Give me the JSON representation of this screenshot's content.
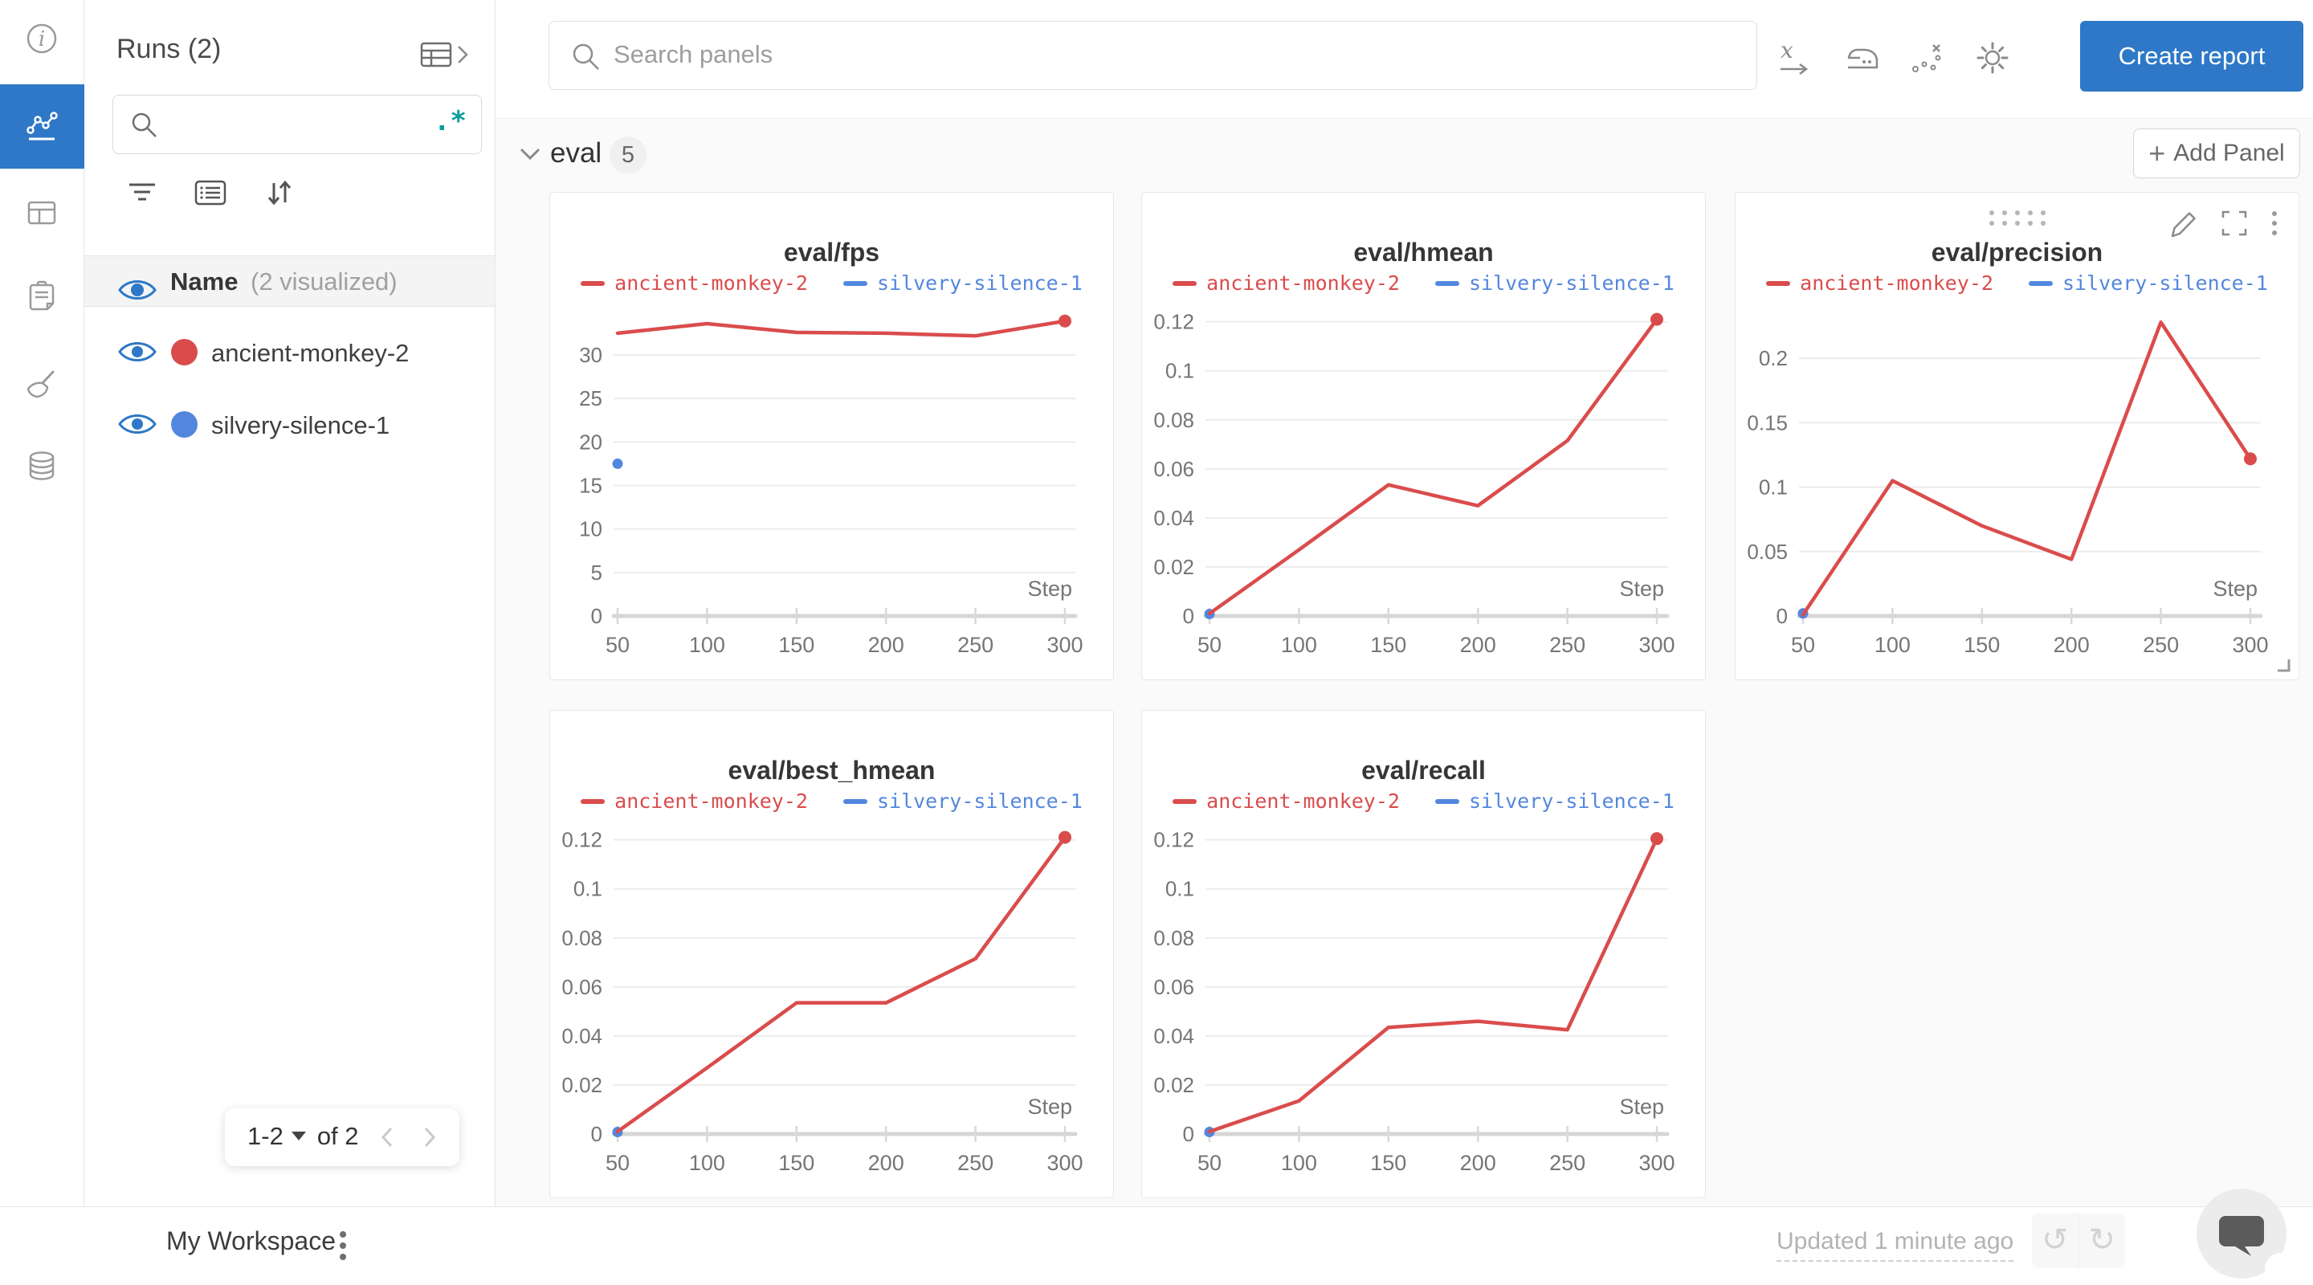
{
  "sidebar": {
    "items": [
      {
        "icon": "info-icon"
      },
      {
        "icon": "line-chart-icon",
        "active": true
      },
      {
        "icon": "table-icon"
      },
      {
        "icon": "clipboard-icon"
      },
      {
        "icon": "broom-icon"
      },
      {
        "icon": "database-icon"
      }
    ],
    "active_color": "#2e78c7"
  },
  "runs_panel": {
    "title": "Runs (2)",
    "search_value": "",
    "regex_toggle": ".*",
    "header": {
      "name": "Name",
      "sub": "(2 visualized)"
    },
    "runs": [
      {
        "name": "ancient-monkey-2",
        "color": "#da4c4c"
      },
      {
        "name": "silvery-silence-1",
        "color": "#5387dd"
      }
    ],
    "pagination": {
      "range": "1-2",
      "of": "of 2"
    }
  },
  "topbar": {
    "search_placeholder": "Search panels",
    "create_report": "Create report"
  },
  "section": {
    "label": "eval",
    "count": "5",
    "add_panel": "Add Panel",
    "add_panel_plus": "+"
  },
  "chart_data": [
    {
      "type": "line",
      "title": "eval/fps",
      "xlabel": "Step",
      "xticks": [
        50,
        100,
        150,
        200,
        250,
        300
      ],
      "yticks": [
        0,
        5,
        10,
        15,
        20,
        25,
        30
      ],
      "ylim": [
        0,
        34.8
      ],
      "grid": true,
      "legend_position": "top",
      "hovered": false,
      "series": [
        {
          "name": "ancient-monkey-2",
          "color": "#da4c4c",
          "x": [
            50,
            100,
            150,
            200,
            250,
            300
          ],
          "values": [
            32.5,
            33.6,
            32.6,
            32.5,
            32.2,
            33.9
          ],
          "end_dot": true
        },
        {
          "name": "silvery-silence-1",
          "color": "#5387dd",
          "x": [
            50
          ],
          "values": [
            17.5
          ],
          "point_only": true
        }
      ]
    },
    {
      "type": "line",
      "title": "eval/hmean",
      "xlabel": "Step",
      "xticks": [
        50,
        100,
        150,
        200,
        250,
        300
      ],
      "yticks": [
        0,
        0.02,
        0.04,
        0.06,
        0.08,
        0.1,
        0.12
      ],
      "ylim": [
        0,
        0.1235
      ],
      "grid": true,
      "legend_position": "top",
      "hovered": false,
      "series": [
        {
          "name": "ancient-monkey-2",
          "color": "#da4c4c",
          "x": [
            50,
            100,
            150,
            200,
            250,
            300
          ],
          "values": [
            0.001,
            0.027,
            0.0535,
            0.045,
            0.0715,
            0.121
          ],
          "end_dot": true
        },
        {
          "name": "silvery-silence-1",
          "color": "#5387dd",
          "x": [
            50
          ],
          "values": [
            0.0008
          ],
          "point_only": true
        }
      ]
    },
    {
      "type": "line",
      "title": "eval/precision",
      "xlabel": "Step",
      "xticks": [
        50,
        100,
        150,
        200,
        250,
        300
      ],
      "yticks": [
        0,
        0.05,
        0.1,
        0.15,
        0.2
      ],
      "ylim": [
        0,
        0.235
      ],
      "grid": true,
      "legend_position": "top",
      "hovered": true,
      "series": [
        {
          "name": "ancient-monkey-2",
          "color": "#da4c4c",
          "x": [
            50,
            100,
            150,
            200,
            250,
            300
          ],
          "values": [
            0.001,
            0.105,
            0.07,
            0.044,
            0.228,
            0.122
          ],
          "end_dot": true
        },
        {
          "name": "silvery-silence-1",
          "color": "#5387dd",
          "x": [
            50
          ],
          "values": [
            0.002
          ],
          "point_only": true
        }
      ]
    },
    {
      "type": "line",
      "title": "eval/best_hmean",
      "xlabel": "Step",
      "xticks": [
        50,
        100,
        150,
        200,
        250,
        300
      ],
      "yticks": [
        0,
        0.02,
        0.04,
        0.06,
        0.08,
        0.1,
        0.12
      ],
      "ylim": [
        0,
        0.1235
      ],
      "grid": true,
      "legend_position": "top",
      "hovered": false,
      "series": [
        {
          "name": "ancient-monkey-2",
          "color": "#da4c4c",
          "x": [
            50,
            100,
            150,
            200,
            250,
            300
          ],
          "values": [
            0.001,
            0.027,
            0.0535,
            0.0535,
            0.0715,
            0.121
          ],
          "end_dot": true
        },
        {
          "name": "silvery-silence-1",
          "color": "#5387dd",
          "x": [
            50
          ],
          "values": [
            0.0008
          ],
          "point_only": true
        }
      ]
    },
    {
      "type": "line",
      "title": "eval/recall",
      "xlabel": "Step",
      "xticks": [
        50,
        100,
        150,
        200,
        250,
        300
      ],
      "yticks": [
        0,
        0.02,
        0.04,
        0.06,
        0.08,
        0.1,
        0.12
      ],
      "ylim": [
        0,
        0.1235
      ],
      "grid": true,
      "legend_position": "top",
      "hovered": false,
      "series": [
        {
          "name": "ancient-monkey-2",
          "color": "#da4c4c",
          "x": [
            50,
            100,
            150,
            200,
            250,
            300
          ],
          "values": [
            0.001,
            0.0135,
            0.0435,
            0.046,
            0.0425,
            0.1205
          ],
          "end_dot": true
        },
        {
          "name": "silvery-silence-1",
          "color": "#5387dd",
          "x": [
            50
          ],
          "values": [
            0.0008
          ],
          "point_only": true
        }
      ]
    }
  ],
  "bottombar": {
    "workspace": "My Workspace",
    "updated": "Updated 1 minute ago"
  },
  "icons": {
    "undo": "↺",
    "redo": "↻"
  },
  "colors": {
    "accent_blue": "#2e78c7",
    "run_red": "#da4c4c",
    "run_blue": "#5387dd",
    "regex_teal": "#0d9d9d"
  }
}
